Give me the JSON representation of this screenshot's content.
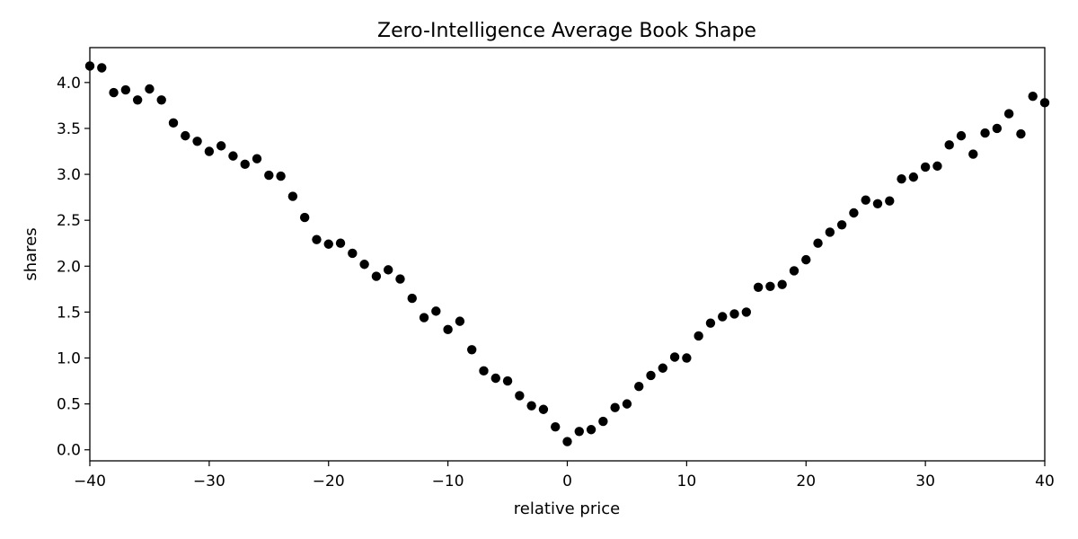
{
  "chart_data": {
    "type": "scatter",
    "title": "Zero-Intelligence Average Book Shape",
    "xlabel": "relative price",
    "ylabel": "shares",
    "xlim": [
      -40,
      40
    ],
    "ylim": [
      -0.12,
      4.38
    ],
    "xticks": [
      -40,
      -30,
      -20,
      -10,
      0,
      10,
      20,
      30,
      40
    ],
    "xtick_labels": [
      "−40",
      "−30",
      "−20",
      "−10",
      "0",
      "10",
      "20",
      "30",
      "40"
    ],
    "yticks": [
      0.0,
      0.5,
      1.0,
      1.5,
      2.0,
      2.5,
      3.0,
      3.5,
      4.0
    ],
    "ytick_labels": [
      "0.0",
      "0.5",
      "1.0",
      "1.5",
      "2.0",
      "2.5",
      "3.0",
      "3.5",
      "4.0"
    ],
    "grid": false,
    "marker_color": "#000000",
    "series": [
      {
        "x": [
          -40,
          -39,
          -38,
          -37,
          -36,
          -35,
          -34,
          -33,
          -32,
          -31,
          -30,
          -29,
          -28,
          -27,
          -26,
          -25,
          -24,
          -23,
          -22,
          -21,
          -20,
          -19,
          -18,
          -17,
          -16,
          -15,
          -14,
          -13,
          -12,
          -11,
          -10,
          -9,
          -8,
          -7,
          -6,
          -5,
          -4,
          -3,
          -2,
          -1,
          0,
          1,
          2,
          3,
          4,
          5,
          6,
          7,
          8,
          9,
          10,
          11,
          12,
          13,
          14,
          15,
          16,
          17,
          18,
          19,
          20,
          21,
          22,
          23,
          24,
          25,
          26,
          27,
          28,
          29,
          30,
          31,
          32,
          33,
          34,
          35,
          36,
          37,
          38,
          39,
          40
        ],
        "y": [
          4.18,
          4.16,
          3.89,
          3.92,
          3.81,
          3.93,
          3.81,
          3.56,
          3.42,
          3.36,
          3.25,
          3.31,
          3.2,
          3.11,
          3.17,
          2.99,
          2.98,
          2.76,
          2.53,
          2.29,
          2.24,
          2.25,
          2.14,
          2.02,
          1.89,
          1.96,
          1.86,
          1.65,
          1.44,
          1.51,
          1.31,
          1.4,
          1.09,
          0.86,
          0.78,
          0.75,
          0.59,
          0.48,
          0.44,
          0.25,
          0.09,
          0.2,
          0.22,
          0.31,
          0.46,
          0.5,
          0.69,
          0.81,
          0.89,
          1.01,
          1.0,
          1.24,
          1.38,
          1.45,
          1.48,
          1.5,
          1.77,
          1.78,
          1.8,
          1.95,
          2.07,
          2.25,
          2.37,
          2.45,
          2.58,
          2.72,
          2.68,
          2.71,
          2.95,
          2.97,
          3.08,
          3.09,
          3.32,
          3.42,
          3.22,
          3.45,
          3.5,
          3.66,
          3.44,
          3.85,
          3.78
        ]
      }
    ]
  }
}
